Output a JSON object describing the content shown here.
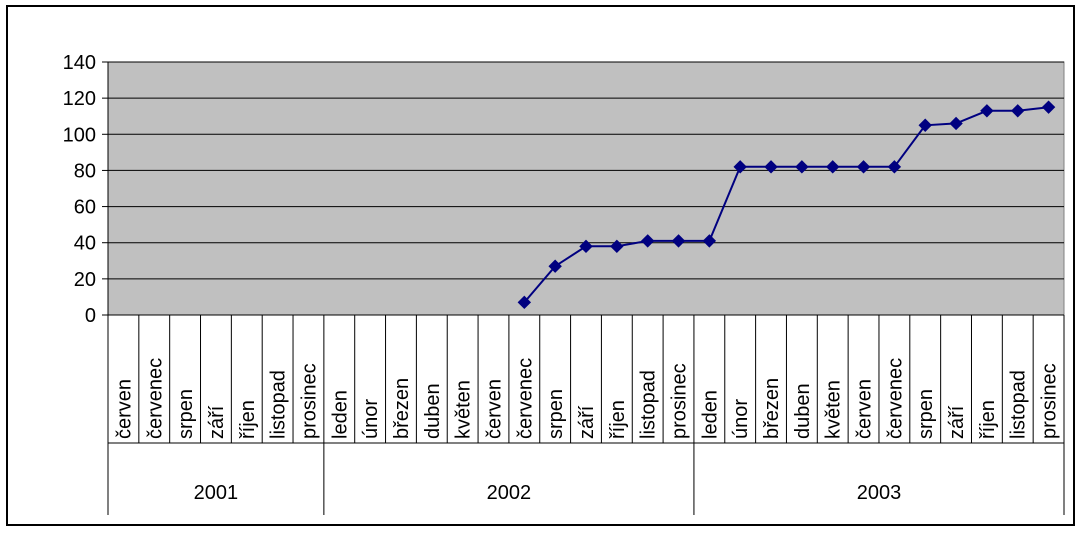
{
  "chart_data": {
    "type": "line",
    "title": "",
    "xlabel": "",
    "ylabel": "",
    "ylim": [
      0,
      140
    ],
    "yticks": [
      0,
      20,
      40,
      60,
      80,
      100,
      120,
      140
    ],
    "grid": true,
    "legend": "none",
    "colors": {
      "plot_bg": "#c0c0c0",
      "line": "#000080",
      "grid": "#000000"
    },
    "categories": [
      "červen",
      "červenec",
      "srpen",
      "září",
      "říjen",
      "listopad",
      "prosinec",
      "leden",
      "únor",
      "březen",
      "duben",
      "květen",
      "červen",
      "červenec",
      "srpen",
      "září",
      "říjen",
      "listopad",
      "prosinec",
      "leden",
      "únor",
      "březen",
      "duben",
      "květen",
      "červen",
      "červenec",
      "srpen",
      "září",
      "říjen",
      "listopad",
      "prosinec"
    ],
    "groups": [
      {
        "label": "2001",
        "count": 7
      },
      {
        "label": "2002",
        "count": 12
      },
      {
        "label": "2003",
        "count": 12
      }
    ],
    "series": [
      {
        "values": [
          null,
          null,
          null,
          null,
          null,
          null,
          null,
          null,
          null,
          null,
          null,
          null,
          null,
          7,
          27,
          38,
          38,
          41,
          41,
          41,
          82,
          82,
          82,
          82,
          82,
          82,
          105,
          106,
          113,
          113,
          115
        ]
      }
    ]
  }
}
